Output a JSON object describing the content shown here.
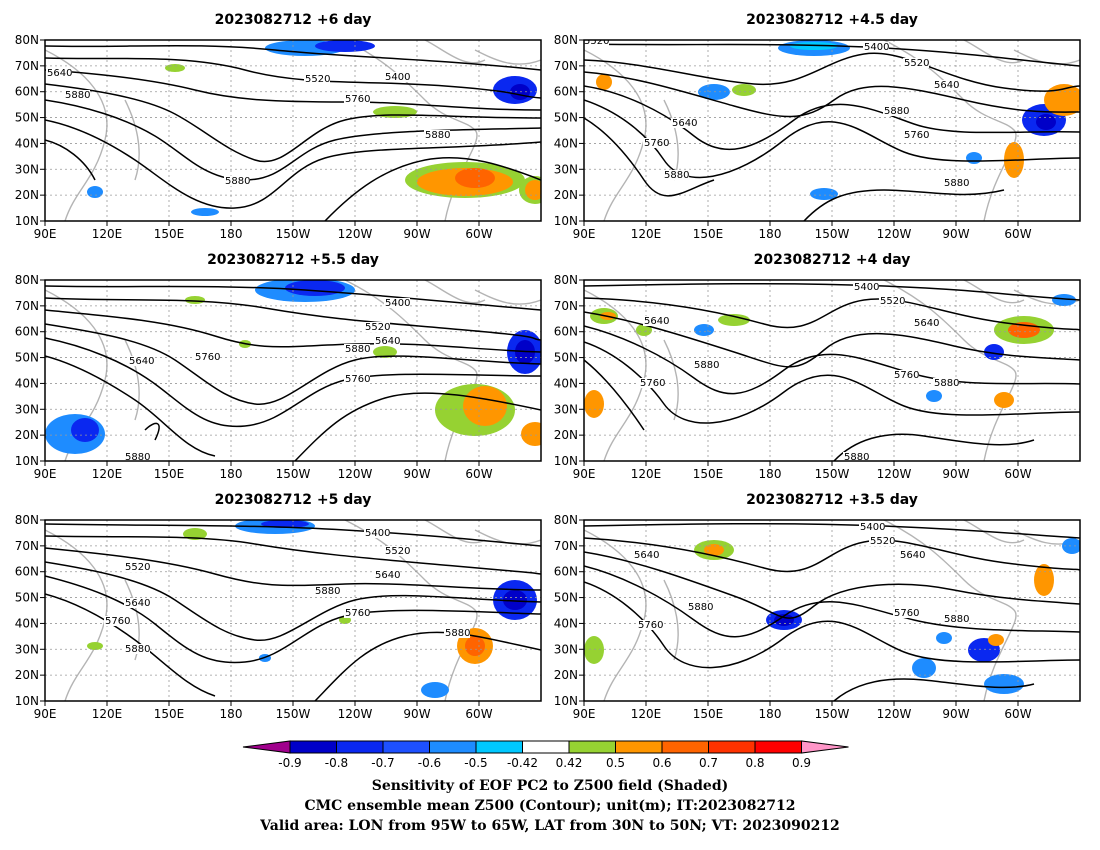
{
  "panels": [
    {
      "title": "2023082712 +6 day"
    },
    {
      "title": "2023082712 +4.5 day"
    },
    {
      "title": "2023082712 +5.5 day"
    },
    {
      "title": "2023082712 +4 day"
    },
    {
      "title": "2023082712 +5 day"
    },
    {
      "title": "2023082712 +3.5 day"
    }
  ],
  "axes": {
    "lon_ticks": [
      "90E",
      "120E",
      "150E",
      "180",
      "150W",
      "120W",
      "90W",
      "60W"
    ],
    "lat_ticks": [
      "80N",
      "70N",
      "60N",
      "50N",
      "40N",
      "30N",
      "20N",
      "10N"
    ]
  },
  "contour_labels": [
    "5400",
    "5520",
    "5640",
    "5760",
    "5880"
  ],
  "colorbar": {
    "tick_labels": [
      "-0.9",
      "-0.8",
      "-0.7",
      "-0.6",
      "-0.5",
      "-0.42",
      "0.42",
      "0.5",
      "0.6",
      "0.7",
      "0.8",
      "0.9"
    ],
    "colors": [
      "#a0008c",
      "#0000c8",
      "#0a28f0",
      "#1e50ff",
      "#1e8cff",
      "#00c8ff",
      "#ffffff",
      "#96d232",
      "#ff9600",
      "#ff6400",
      "#ff3200",
      "#ff0000",
      "#ff96c8"
    ]
  },
  "caption": {
    "line1": "Sensitivity of EOF PC2 to Z500 field (Shaded)",
    "line2": "CMC ensemble mean Z500 (Contour); unit(m); IT:2023082712",
    "line3": "Valid area: LON from 95W to 65W, LAT from 30N to 50N; VT: 2023090212"
  }
}
